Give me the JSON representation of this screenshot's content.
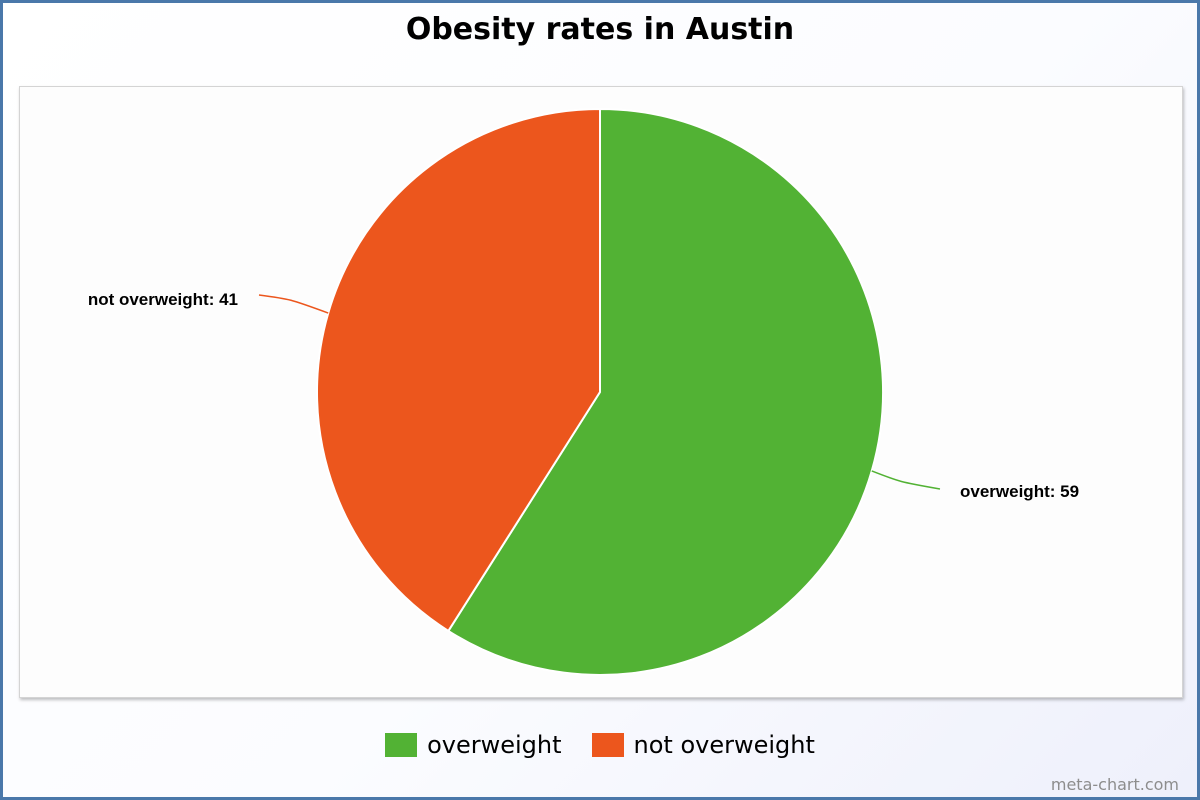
{
  "chart_data": {
    "type": "pie",
    "title": "Obesity rates in Austin",
    "categories": [
      "overweight",
      "not overweight"
    ],
    "values": [
      59,
      41
    ],
    "colors": [
      "#52b234",
      "#ec561d"
    ],
    "data_labels": [
      "overweight: 59",
      "not overweight: 41"
    ],
    "legend": {
      "placement": "bottom",
      "entries": [
        "overweight",
        "not overweight"
      ]
    },
    "start_angle": "12 o'clock",
    "direction": "clockwise"
  },
  "watermark": "meta-chart.com"
}
